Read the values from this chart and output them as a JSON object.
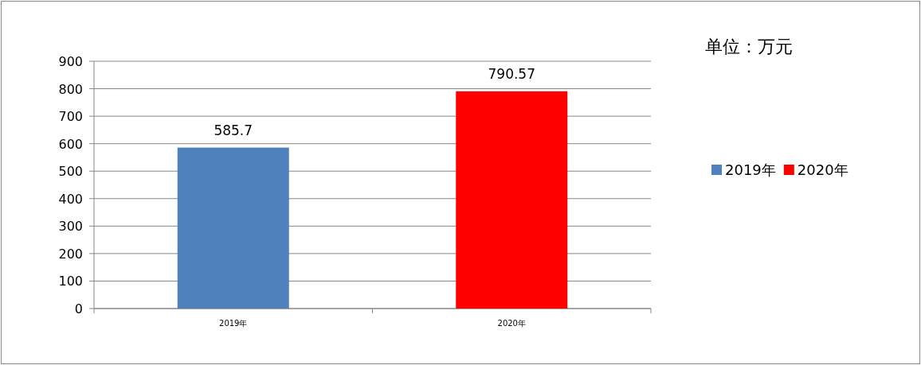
{
  "chart_data": {
    "type": "bar",
    "annotations": [
      "单位：万元"
    ],
    "categories": [
      "2019年",
      "2020年"
    ],
    "series": [
      {
        "name": "2019年",
        "color": "#4f81bd",
        "values": [
          585.7,
          null
        ]
      },
      {
        "name": "2020年",
        "color": "#ff0000",
        "values": [
          null,
          790.57
        ]
      }
    ],
    "ylim": [
      0,
      900
    ],
    "yticks": [
      0,
      100,
      200,
      300,
      400,
      500,
      600,
      700,
      800,
      900
    ],
    "grid": "y",
    "legend": "right",
    "data_labels": true
  }
}
